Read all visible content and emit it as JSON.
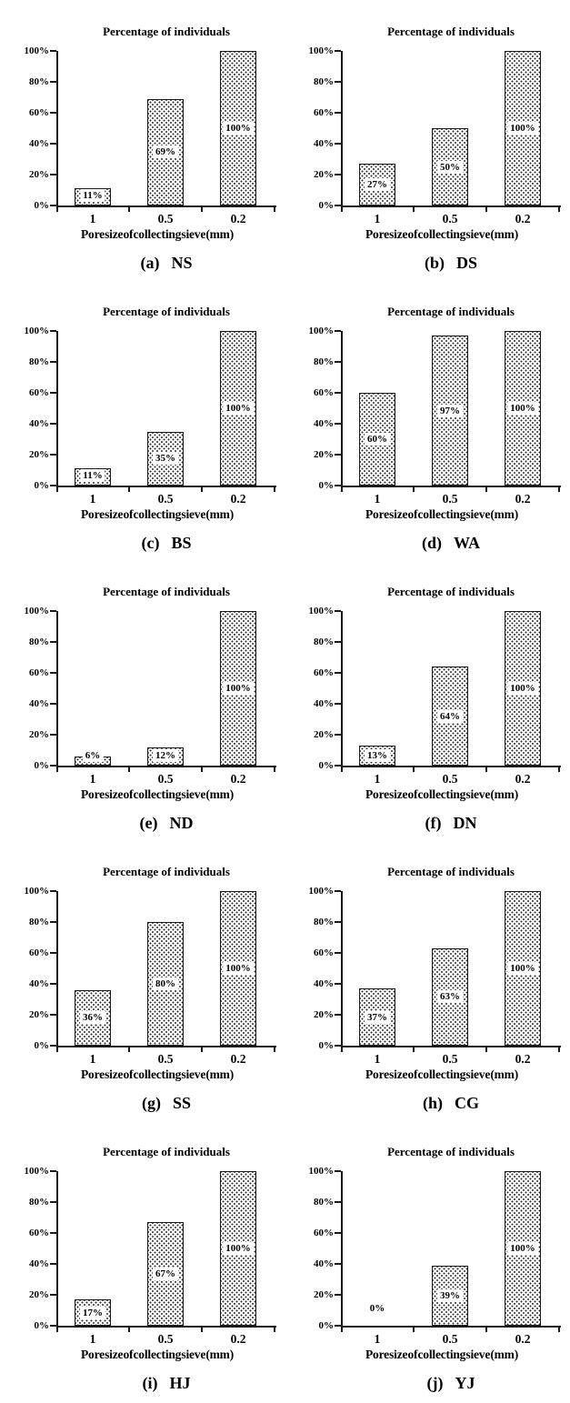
{
  "chart_data": {
    "type": "bar",
    "title": "Percentage of individuals",
    "xlabel": "Pore size of collecting sieve (mm)",
    "categories": [
      "1",
      "0.5",
      "0.2"
    ],
    "ylim": [
      0,
      100
    ],
    "ytick_labels": [
      "0%",
      "20%",
      "40%",
      "60%",
      "80%",
      "100%"
    ],
    "grid": false,
    "legend": "none",
    "bar_style": {
      "fill": "white-with-black-stipple-dots",
      "border_color": "#1b1b1b",
      "label_background": "#ffffff",
      "text_color": "#000000"
    },
    "panels": [
      {
        "panel": "(a)",
        "site": "NS",
        "values": [
          11,
          69,
          100
        ],
        "labels": [
          "11%",
          "69%",
          "100%"
        ]
      },
      {
        "panel": "(b)",
        "site": "DS",
        "values": [
          27,
          50,
          100
        ],
        "labels": [
          "27%",
          "50%",
          "100%"
        ]
      },
      {
        "panel": "(c)",
        "site": "BS",
        "values": [
          11,
          35,
          100
        ],
        "labels": [
          "11%",
          "35%",
          "100%"
        ]
      },
      {
        "panel": "(d)",
        "site": "WA",
        "values": [
          60,
          97,
          100
        ],
        "labels": [
          "60%",
          "97%",
          "100%"
        ]
      },
      {
        "panel": "(e)",
        "site": "ND",
        "values": [
          6,
          12,
          100
        ],
        "labels": [
          "6%",
          "12%",
          "100%"
        ]
      },
      {
        "panel": "(f)",
        "site": "DN",
        "values": [
          13,
          64,
          100
        ],
        "labels": [
          "13%",
          "64%",
          "100%"
        ]
      },
      {
        "panel": "(g)",
        "site": "SS",
        "values": [
          36,
          80,
          100
        ],
        "labels": [
          "36%",
          "80%",
          "100%"
        ]
      },
      {
        "panel": "(h)",
        "site": "CG",
        "values": [
          37,
          63,
          100
        ],
        "labels": [
          "37%",
          "63%",
          "100%"
        ]
      },
      {
        "panel": "(i)",
        "site": "HJ",
        "values": [
          17,
          67,
          100
        ],
        "labels": [
          "17%",
          "67%",
          "100%"
        ]
      },
      {
        "panel": "(j)",
        "site": "YJ",
        "values": [
          0,
          39,
          100
        ],
        "labels": [
          "0%",
          "39%",
          "100%"
        ]
      }
    ]
  }
}
